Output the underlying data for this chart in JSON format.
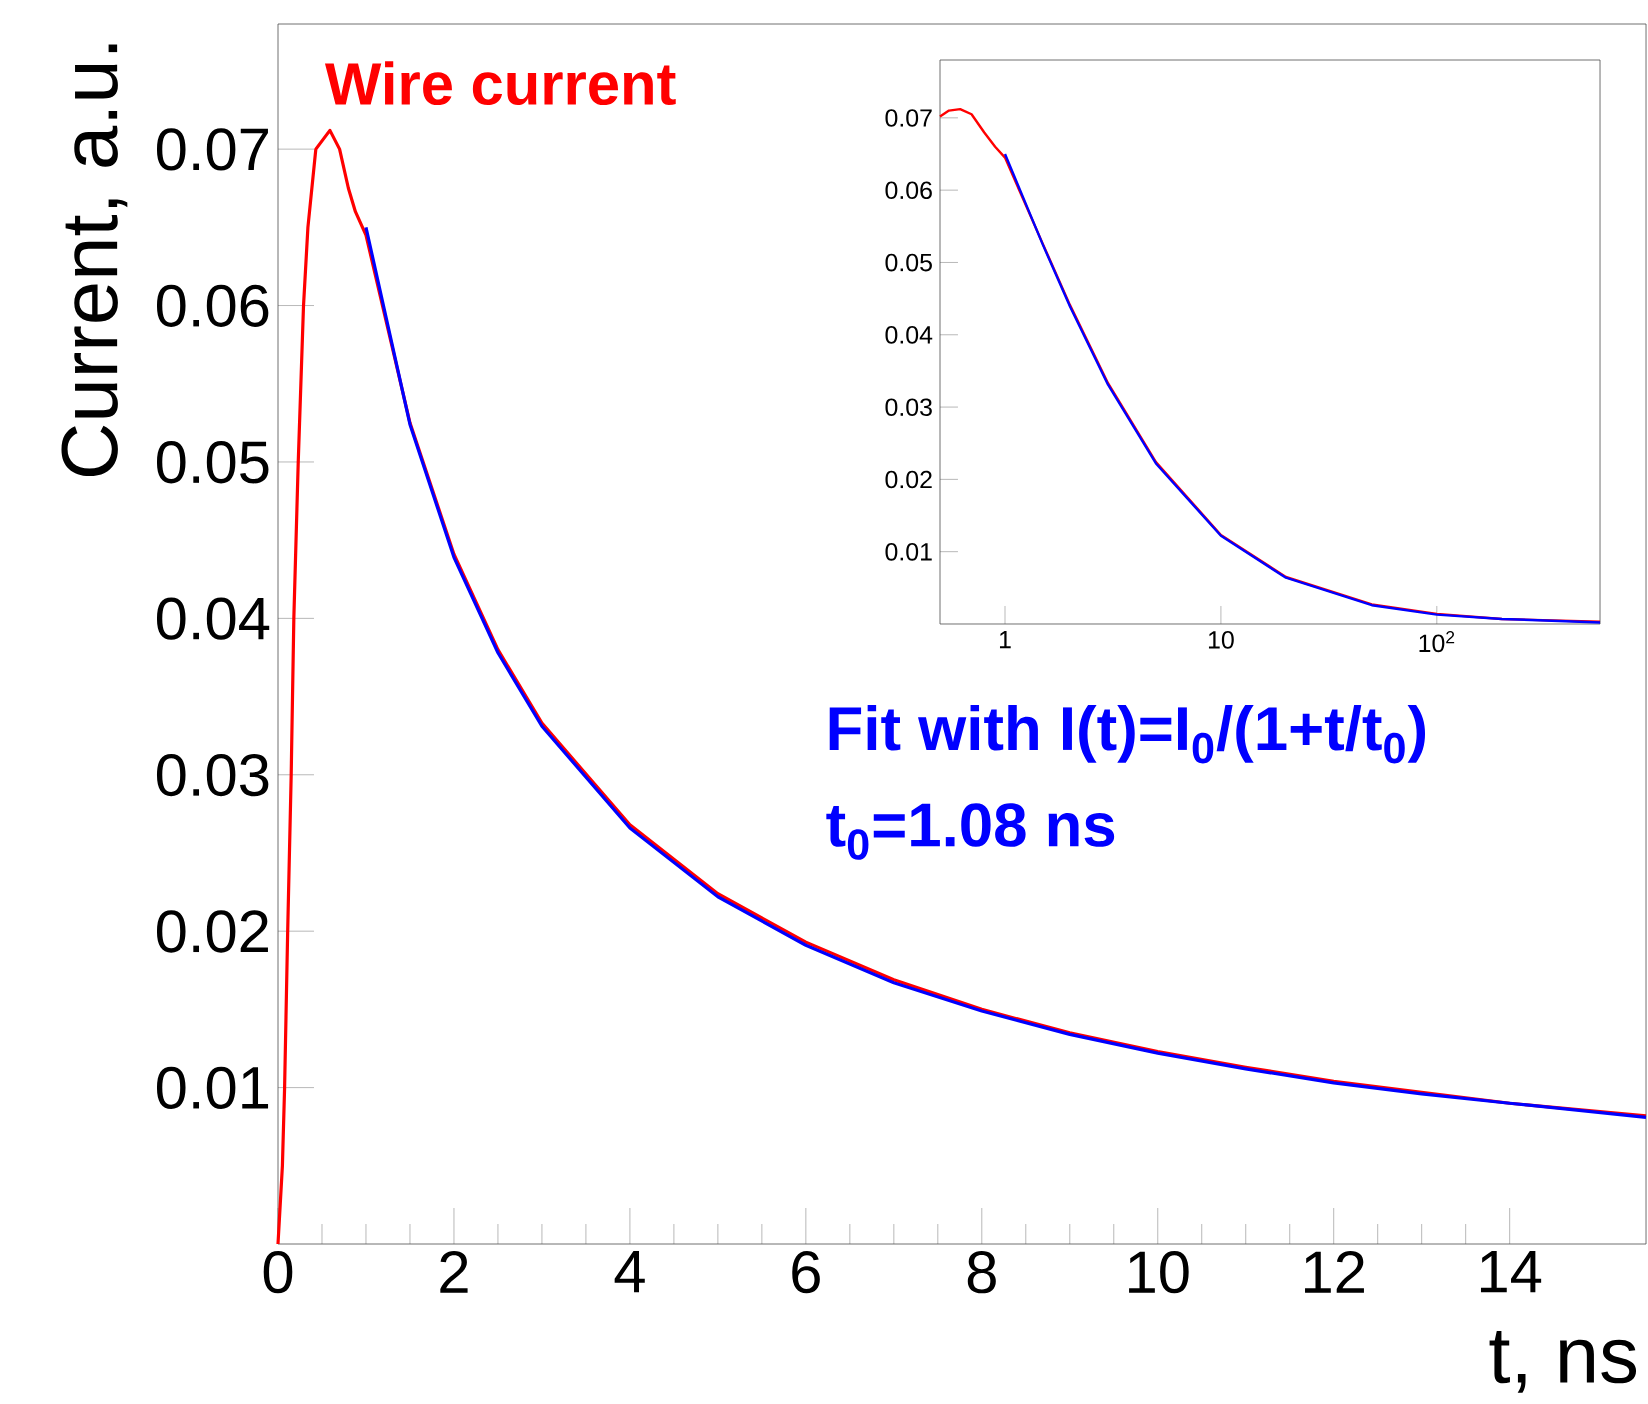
{
  "chart_data": [
    {
      "type": "line",
      "xlabel": "t, ns",
      "ylabel": "Current, a.u.",
      "xlim": [
        0,
        15.55
      ],
      "ylim": [
        0,
        0.078
      ],
      "xticks": [
        0,
        2,
        4,
        6,
        8,
        10,
        12,
        14
      ],
      "yticks": [
        0.01,
        0.02,
        0.03,
        0.04,
        0.05,
        0.06,
        0.07
      ],
      "annotations": [
        "t$_{0}$=1.08 ns"
      ],
      "series": [
        {
          "name": "Wire current",
          "color": "#ff0000",
          "x": [
            0,
            0.05,
            0.075,
            0.11,
            0.15,
            0.18,
            0.23,
            0.29,
            0.34,
            0.43,
            0.59,
            0.7,
            0.8,
            0.88,
            1.0,
            1.5,
            2,
            2.5,
            3,
            4,
            5,
            6,
            7,
            8,
            9,
            10,
            11,
            12,
            13,
            14,
            15.55
          ],
          "values": [
            0,
            0.005,
            0.01,
            0.02,
            0.03,
            0.04,
            0.05,
            0.06,
            0.065,
            0.07,
            0.0712,
            0.07,
            0.0675,
            0.066,
            0.0645,
            0.0525,
            0.0441,
            0.038,
            0.0333,
            0.0268,
            0.0224,
            0.0193,
            0.0169,
            0.015,
            0.0135,
            0.0123,
            0.0113,
            0.0104,
            0.0097,
            0.009,
            0.0082
          ]
        },
        {
          "name": "Fit with I(t)=I$_{0}$/(1+t/t$_{0}$)",
          "color": "#0000ff",
          "x": [
            1.0,
            1.5,
            2,
            2.5,
            3,
            4,
            5,
            6,
            7,
            8,
            9,
            10,
            11,
            12,
            13,
            14,
            15.55
          ],
          "values": [
            0.065,
            0.0524,
            0.0439,
            0.0378,
            0.0331,
            0.0266,
            0.0222,
            0.0191,
            0.0167,
            0.0149,
            0.0134,
            0.0122,
            0.0112,
            0.0103,
            0.0096,
            0.009,
            0.0081
          ]
        }
      ]
    },
    {
      "type": "line",
      "log": "x",
      "xlim": [
        0.5,
        570
      ],
      "ylim": [
        0,
        0.078
      ],
      "xticks": [
        1,
        10,
        {
          "value": 100,
          "label": "10$^{2}$"
        }
      ],
      "yticks": [
        0.01,
        0.02,
        0.03,
        0.04,
        0.05,
        0.06,
        0.07
      ],
      "series": [
        {
          "color": "#ff0000",
          "x": [
            0.5,
            0.55,
            0.62,
            0.7,
            0.8,
            0.9,
            1,
            1.5,
            2,
            3,
            5,
            10,
            20,
            50,
            100,
            200,
            570
          ],
          "values": [
            0.0702,
            0.071,
            0.0712,
            0.0705,
            0.068,
            0.066,
            0.0645,
            0.0525,
            0.0441,
            0.0333,
            0.0224,
            0.0123,
            0.0065,
            0.0027,
            0.0014,
            0.0007,
            0.0003
          ]
        },
        {
          "color": "#0000ff",
          "x": [
            1,
            1.5,
            2,
            3,
            5,
            10,
            20,
            50,
            100,
            200,
            570
          ],
          "values": [
            0.065,
            0.0524,
            0.0439,
            0.0331,
            0.0222,
            0.0122,
            0.0064,
            0.0026,
            0.0013,
            0.0007,
            0.0002
          ]
        }
      ]
    }
  ]
}
